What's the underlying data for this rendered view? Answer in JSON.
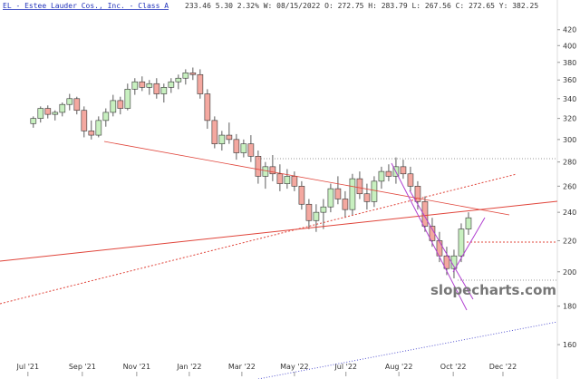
{
  "header": {
    "symbol": "EL - Estee Lauder Cos., Inc. - Class A",
    "quote": "233.46 5.30 2.32% W: 08/15/2022 O: 272.75 H: 283.79 L: 267.56 C: 272.65 Y: 382.25"
  },
  "watermark": "slopecharts.com",
  "chart_data": {
    "type": "candlestick",
    "log_scale": true,
    "up_color": "#c8f0c0",
    "down_color": "#f4a8a0",
    "wick_color": "#333333",
    "categories": [
      null,
      null,
      null,
      null,
      null,
      null,
      null,
      null,
      null,
      null,
      null,
      null,
      null,
      null,
      null,
      null,
      null,
      null,
      null,
      null,
      null,
      null,
      null,
      null,
      null,
      null,
      null,
      null,
      null,
      null,
      null,
      null,
      null,
      null,
      null,
      null,
      null,
      null,
      null,
      null,
      null,
      null,
      null,
      null,
      null,
      null,
      null,
      null,
      null,
      null,
      null,
      null,
      null,
      null,
      null,
      null,
      null,
      null,
      null,
      null,
      null
    ],
    "open": [
      315,
      320,
      330,
      324,
      326,
      334,
      340,
      328,
      308,
      304,
      318,
      326,
      338,
      330,
      350,
      358,
      352,
      356,
      345,
      352,
      358,
      362,
      368,
      366,
      345,
      318,
      296,
      304,
      300,
      288,
      296,
      285,
      268,
      276,
      270,
      262,
      268,
      260,
      246,
      234,
      240,
      244,
      258,
      250,
      242,
      266,
      254,
      248,
      264,
      272,
      268,
      276,
      270,
      260,
      248,
      230,
      220,
      210,
      202,
      210,
      228
    ],
    "high": [
      322,
      332,
      333,
      328,
      336,
      345,
      342,
      332,
      318,
      322,
      330,
      344,
      342,
      356,
      362,
      364,
      360,
      362,
      356,
      362,
      366,
      372,
      374,
      372,
      350,
      322,
      308,
      316,
      305,
      300,
      304,
      290,
      280,
      286,
      278,
      274,
      272,
      264,
      250,
      246,
      250,
      262,
      268,
      256,
      270,
      272,
      262,
      268,
      276,
      278,
      284,
      282,
      276,
      264,
      252,
      236,
      226,
      216,
      214,
      232,
      240
    ],
    "low": [
      311,
      316,
      320,
      318,
      322,
      328,
      324,
      302,
      300,
      302,
      312,
      322,
      324,
      328,
      344,
      348,
      344,
      340,
      336,
      346,
      350,
      355,
      360,
      340,
      310,
      292,
      290,
      296,
      282,
      284,
      280,
      262,
      258,
      264,
      256,
      258,
      256,
      242,
      228,
      226,
      228,
      240,
      246,
      236,
      238,
      250,
      242,
      244,
      258,
      264,
      262,
      266,
      256,
      242,
      226,
      216,
      206,
      198,
      196,
      206,
      224
    ],
    "close": [
      320,
      330,
      324,
      326,
      334,
      340,
      328,
      308,
      304,
      318,
      326,
      338,
      330,
      350,
      358,
      352,
      356,
      345,
      352,
      358,
      362,
      368,
      366,
      345,
      318,
      296,
      304,
      300,
      288,
      296,
      285,
      268,
      276,
      270,
      262,
      268,
      260,
      246,
      234,
      240,
      244,
      258,
      250,
      242,
      266,
      254,
      248,
      264,
      272,
      268,
      276,
      270,
      260,
      248,
      230,
      220,
      210,
      202,
      210,
      228,
      236
    ],
    "ylim": [
      144,
      460
    ],
    "yticks": [
      160,
      180,
      200,
      220,
      240,
      260,
      280,
      300,
      320,
      340,
      360,
      380,
      400,
      420
    ],
    "xlim": [
      -4.6,
      72.25
    ],
    "xticks": [
      {
        "value": -0.75,
        "label": "Jul '21"
      },
      {
        "value": 6.75,
        "label": "Sep '21"
      },
      {
        "value": 14.25,
        "label": "Nov '21"
      },
      {
        "value": 21.5,
        "label": "Jan '22"
      },
      {
        "value": 28.75,
        "label": "Mar '22"
      },
      {
        "value": 36,
        "label": "May '22"
      },
      {
        "value": 43.1,
        "label": "Jul '22"
      },
      {
        "value": 50.4,
        "label": "Aug '22"
      },
      {
        "value": 57.9,
        "label": "Oct '22"
      },
      {
        "value": 64.75,
        "label": "Dec '22"
      }
    ]
  }
}
